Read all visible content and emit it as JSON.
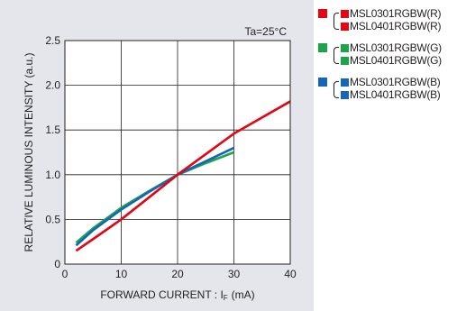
{
  "chart_data": {
    "type": "line",
    "annotation": "Ta=25°C",
    "xlabel": "FORWARD CURRENT : IF (mA)",
    "xlabel_parts": {
      "main": "FORWARD CURRENT : I",
      "sub": "F",
      "unit": "(mA)"
    },
    "ylabel": "RELATIVE LUMINOUS INTENSITY (a.u.)",
    "xlim": [
      0,
      40
    ],
    "ylim": [
      0,
      2.5
    ],
    "x_ticks": [
      "0",
      "10",
      "20",
      "30",
      "40"
    ],
    "y_ticks": [
      "0",
      "0.5",
      "1.0",
      "1.5",
      "2.0",
      "2.5"
    ],
    "grid": true,
    "legend_position": "outside-right",
    "series": [
      {
        "name": "MSL0301RGBW(R)",
        "color": "#e30613",
        "x": [
          2,
          5,
          10,
          15,
          20,
          25,
          30,
          35,
          40
        ],
        "y": [
          0.15,
          0.28,
          0.5,
          0.75,
          1.0,
          1.23,
          1.46,
          1.64,
          1.82
        ]
      },
      {
        "name": "MSL0401RGBW(R)",
        "color": "#e30613",
        "x": [
          2,
          5,
          10,
          15,
          20,
          25,
          30,
          35,
          40
        ],
        "y": [
          0.15,
          0.28,
          0.5,
          0.75,
          1.0,
          1.23,
          1.46,
          1.64,
          1.82
        ]
      },
      {
        "name": "MSL0301RGBW(G)",
        "color": "#1aa548",
        "x": [
          2,
          5,
          10,
          15,
          20,
          25,
          30
        ],
        "y": [
          0.24,
          0.4,
          0.63,
          0.82,
          1.0,
          1.13,
          1.25
        ]
      },
      {
        "name": "MSL0401RGBW(G)",
        "color": "#1aa548",
        "x": [
          2,
          5,
          10,
          15,
          20,
          25,
          30
        ],
        "y": [
          0.24,
          0.4,
          0.63,
          0.82,
          1.0,
          1.13,
          1.25
        ]
      },
      {
        "name": "MSL0301RGBW(B)",
        "color": "#1565b8",
        "x": [
          2,
          5,
          10,
          15,
          20,
          25,
          30
        ],
        "y": [
          0.21,
          0.38,
          0.61,
          0.81,
          1.0,
          1.15,
          1.3
        ]
      },
      {
        "name": "MSL0401RGBW(B)",
        "color": "#1565b8",
        "x": [
          2,
          5,
          10,
          15,
          20,
          25,
          30
        ],
        "y": [
          0.21,
          0.38,
          0.61,
          0.81,
          1.0,
          1.15,
          1.3
        ]
      }
    ]
  },
  "legend": {
    "groups": [
      {
        "color": "#e30613",
        "items": [
          "MSL0301RGBW(R)",
          "MSL0401RGBW(R)"
        ]
      },
      {
        "color": "#1aa548",
        "items": [
          "MSL0301RGBW(G)",
          "MSL0401RGBW(G)"
        ]
      },
      {
        "color": "#1565b8",
        "items": [
          "MSL0301RGBW(B)",
          "MSL0401RGBW(B)"
        ]
      }
    ]
  },
  "colors": {
    "panel_background": "#e4e6eb",
    "plot_background": "#ffffff",
    "axis": "#231f20"
  }
}
